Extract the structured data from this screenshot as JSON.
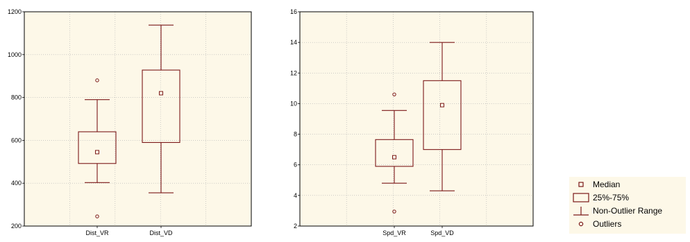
{
  "colors": {
    "box": "#7b1818",
    "plot_background": "#fdf8e8",
    "grid": "#b0b0b0",
    "frame": "#000000"
  },
  "legend": {
    "items": [
      {
        "label": "Median",
        "symbol": "small-square"
      },
      {
        "label": "25%-75%",
        "symbol": "box"
      },
      {
        "label": "Non-Outlier Range",
        "symbol": "whisker"
      },
      {
        "label": "Outliers",
        "symbol": "circle"
      }
    ]
  },
  "chart_data": [
    {
      "type": "boxplot",
      "title": "",
      "xlabel": "",
      "ylabel": "",
      "ylim": [
        200,
        1200
      ],
      "yticks": [
        "200",
        "400",
        "600",
        "800",
        "1000",
        "1200"
      ],
      "grid": true,
      "categories": [
        "Dist_VR",
        "Dist_VD"
      ],
      "boxes": [
        {
          "name": "Dist_VR",
          "median": 545,
          "q1": 492,
          "q3": 640,
          "whisker_low": 403,
          "whisker_high": 790,
          "outliers": [
            880,
            245
          ]
        },
        {
          "name": "Dist_VD",
          "median": 820,
          "q1": 590,
          "q3": 928,
          "whisker_low": 355,
          "whisker_high": 1138,
          "outliers": []
        }
      ]
    },
    {
      "type": "boxplot",
      "title": "",
      "xlabel": "",
      "ylabel": "",
      "ylim": [
        2,
        16
      ],
      "yticks": [
        "2",
        "4",
        "6",
        "8",
        "10",
        "12",
        "14",
        "16"
      ],
      "grid": true,
      "categories": [
        "Spd_VR",
        "Spd_VD"
      ],
      "boxes": [
        {
          "name": "Spd_VR",
          "median": 6.5,
          "q1": 5.9,
          "q3": 7.65,
          "whisker_low": 4.8,
          "whisker_high": 9.55,
          "outliers": [
            10.6,
            2.95
          ]
        },
        {
          "name": "Spd_VD",
          "median": 9.9,
          "q1": 7.0,
          "q3": 11.5,
          "whisker_low": 4.3,
          "whisker_high": 14.0,
          "outliers": []
        }
      ]
    }
  ]
}
